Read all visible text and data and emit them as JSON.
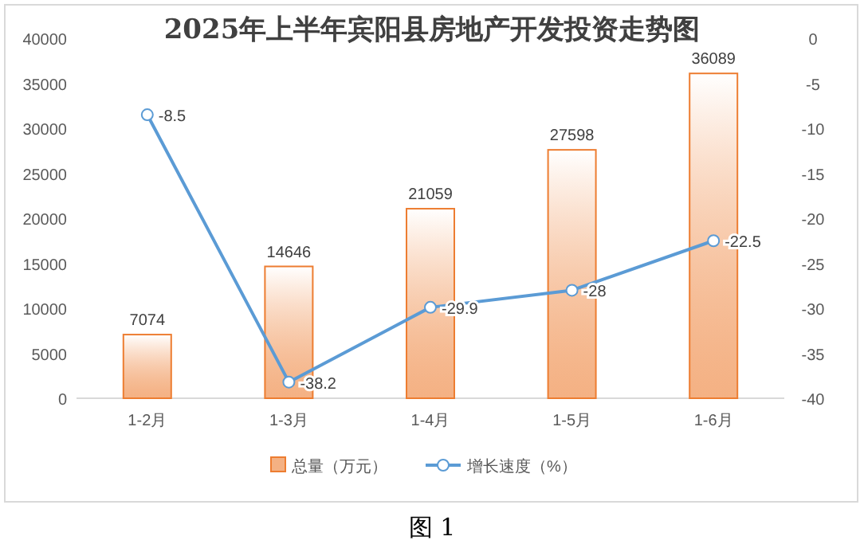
{
  "chart_data": {
    "type": "bar",
    "title": "2025年上半年宾阳县房地产开发投资走势图",
    "categories": [
      "1-2月",
      "1-3月",
      "1-4月",
      "1-5月",
      "1-6月"
    ],
    "series": [
      {
        "name": "总量（万元）",
        "color": "#ed7d31",
        "values": [
          7074,
          14646,
          21059,
          27598,
          36089
        ]
      },
      {
        "name": "增长速度（%）",
        "type": "line",
        "axis": "y2",
        "color": "#5b9bd5",
        "values": [
          -8.5,
          -38.2,
          -29.9,
          -28,
          -22.5
        ]
      }
    ],
    "ylim": [
      0,
      40000
    ],
    "yticks": [
      0,
      5000,
      10000,
      15000,
      20000,
      25000,
      30000,
      35000,
      40000
    ],
    "y2lim": [
      -40,
      0
    ],
    "y2ticks": [
      -40,
      -35,
      -30,
      -25,
      -20,
      -15,
      -10,
      -5,
      0
    ],
    "marker": "circle",
    "data_labels": true,
    "legend": "bottom",
    "grid": false,
    "annotations": [
      "图 1"
    ]
  }
}
